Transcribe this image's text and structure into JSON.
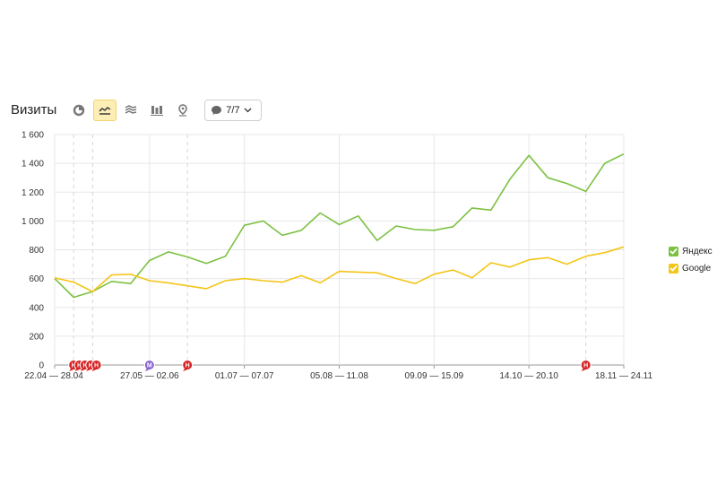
{
  "header": {
    "title": "Визиты",
    "annotations_label": "7/7"
  },
  "toolbar_icons": [
    {
      "name": "pie-chart-icon",
      "active": false
    },
    {
      "name": "line-chart-icon",
      "active": true
    },
    {
      "name": "area-chart-icon",
      "active": false
    },
    {
      "name": "column-chart-icon",
      "active": false
    },
    {
      "name": "map-pin-icon",
      "active": false
    }
  ],
  "colors": {
    "yandex": "#7cc142",
    "google": "#f5c518",
    "marker_red": "#d62222",
    "marker_purple": "#8a63d2",
    "grid": "#e7e7e7",
    "axis": "#999999"
  },
  "legend": [
    {
      "label": "Яндекс",
      "color": "#7cc142"
    },
    {
      "label": "Google",
      "color": "#f5c518"
    }
  ],
  "chart_data": {
    "type": "line",
    "y_ticks": [
      "0",
      "200",
      "400",
      "600",
      "800",
      "1 000",
      "1 200",
      "1 400",
      "1 600"
    ],
    "ylim": [
      0,
      1600
    ],
    "x_tick_labels": [
      {
        "index": 0,
        "label": "22.04 — 28.04"
      },
      {
        "index": 5,
        "label": "27.05 — 02.06"
      },
      {
        "index": 10,
        "label": "01.07 — 07.07"
      },
      {
        "index": 15,
        "label": "05.08 — 11.08"
      },
      {
        "index": 20,
        "label": "09.09 — 15.09"
      },
      {
        "index": 25,
        "label": "14.10 — 20.10"
      },
      {
        "index": 30,
        "label": "18.11 — 24.11"
      }
    ],
    "series": [
      {
        "name": "Яндекс",
        "color": "#7cc142",
        "values": [
          600,
          470,
          510,
          580,
          565,
          725,
          785,
          750,
          705,
          755,
          970,
          1000,
          900,
          935,
          1055,
          975,
          1035,
          865,
          965,
          940,
          935,
          960,
          1090,
          1075,
          1290,
          1455,
          1300,
          1260,
          1205,
          1400,
          1465
        ]
      },
      {
        "name": "Google",
        "color": "#f5c518",
        "values": [
          605,
          575,
          510,
          625,
          630,
          585,
          570,
          550,
          530,
          585,
          600,
          585,
          575,
          620,
          570,
          650,
          645,
          640,
          600,
          565,
          630,
          660,
          605,
          710,
          680,
          730,
          745,
          700,
          755,
          780,
          820
        ]
      }
    ],
    "event_markers": [
      {
        "index": 1,
        "kind": "red",
        "label": "Н"
      },
      {
        "index": 1.3,
        "kind": "red",
        "label": "Н"
      },
      {
        "index": 1.6,
        "kind": "red",
        "label": "Н"
      },
      {
        "index": 1.9,
        "kind": "red",
        "label": "Н"
      },
      {
        "index": 2.2,
        "kind": "red",
        "label": "Н"
      },
      {
        "index": 5,
        "kind": "purple",
        "label": "М"
      },
      {
        "index": 7,
        "kind": "red",
        "label": "Н"
      },
      {
        "index": 28,
        "kind": "red",
        "label": "Н"
      }
    ],
    "dashed_guides": [
      1,
      2,
      7,
      28
    ]
  }
}
